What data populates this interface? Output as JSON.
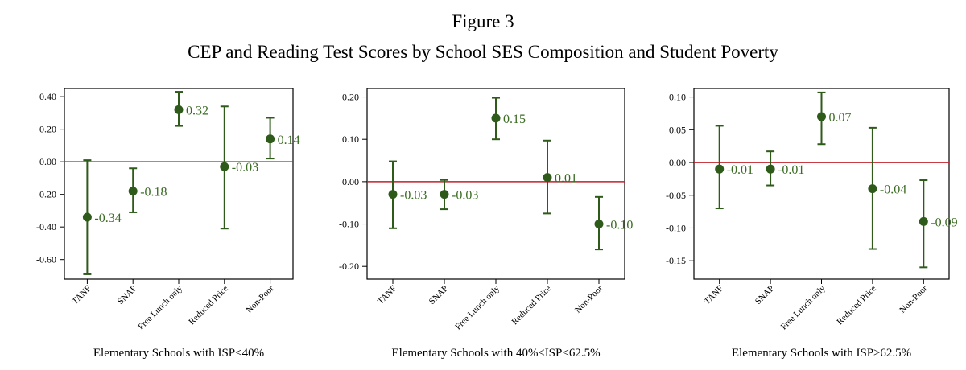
{
  "figure": {
    "label": "Figure 3",
    "title": "CEP and Reading Test Scores by School SES Composition and Student Poverty"
  },
  "colors": {
    "marker": "#2e5a1a",
    "label": "#3a6b22",
    "zero_line": "#c0202a",
    "axis": "#000000"
  },
  "chart_data": [
    {
      "type": "scatter",
      "title": "Elementary Schools with ISP<40%",
      "categories": [
        "TANF",
        "SNAP",
        "Free Lunch only",
        "Reduced Price",
        "Non-Poor"
      ],
      "values": [
        -0.34,
        -0.18,
        0.32,
        -0.03,
        0.14
      ],
      "labels": [
        "-0.34",
        "-0.18",
        "0.32",
        "-0.03",
        "0.14"
      ],
      "ci_lower": [
        -0.69,
        -0.31,
        0.22,
        -0.41,
        0.02
      ],
      "ci_upper": [
        0.01,
        -0.04,
        0.43,
        0.34,
        0.27
      ],
      "yticks": [
        0.4,
        0.2,
        0.0,
        -0.2,
        -0.4,
        -0.6
      ],
      "ytick_labels": [
        "0.40",
        "0.20",
        "0.00",
        "-0.20",
        "-0.40",
        "-0.60"
      ],
      "ylim": [
        -0.72,
        0.45
      ],
      "reference_line": 0
    },
    {
      "type": "scatter",
      "title": "Elementary Schools with 40%≤ISP<62.5%",
      "categories": [
        "TANF",
        "SNAP",
        "Free Lunch only",
        "Reduced Price",
        "Non-Poor"
      ],
      "values": [
        -0.03,
        -0.03,
        0.15,
        0.01,
        -0.1
      ],
      "labels": [
        "-0.03",
        "-0.03",
        "0.15",
        "0.01",
        "-0.10"
      ],
      "ci_lower": [
        -0.11,
        -0.065,
        0.1,
        -0.075,
        -0.16
      ],
      "ci_upper": [
        0.048,
        0.004,
        0.198,
        0.097,
        -0.036
      ],
      "yticks": [
        0.2,
        0.1,
        0.0,
        -0.1,
        -0.2
      ],
      "ytick_labels": [
        "0.20",
        "0.10",
        "0.00",
        "-0.10",
        "-0.20"
      ],
      "ylim": [
        -0.23,
        0.22
      ],
      "reference_line": 0
    },
    {
      "type": "scatter",
      "title": "Elementary Schools with ISP≥62.5%",
      "categories": [
        "TANF",
        "SNAP",
        "Free Lunch only",
        "Reduced Price",
        "Non-Poor"
      ],
      "values": [
        -0.01,
        -0.01,
        0.07,
        -0.04,
        -0.09
      ],
      "labels": [
        "-0.01",
        "-0.01",
        "0.07",
        "-0.04",
        "-0.09"
      ],
      "ci_lower": [
        -0.07,
        -0.035,
        0.028,
        -0.132,
        -0.16
      ],
      "ci_upper": [
        0.056,
        0.017,
        0.107,
        0.053,
        -0.027
      ],
      "yticks": [
        0.1,
        0.05,
        0.0,
        -0.05,
        -0.1,
        -0.15
      ],
      "ytick_labels": [
        "0.10",
        "0.05",
        "0.00",
        "-0.05",
        "-0.10",
        "-0.15"
      ],
      "ylim": [
        -0.178,
        0.113
      ],
      "reference_line": 0
    }
  ]
}
